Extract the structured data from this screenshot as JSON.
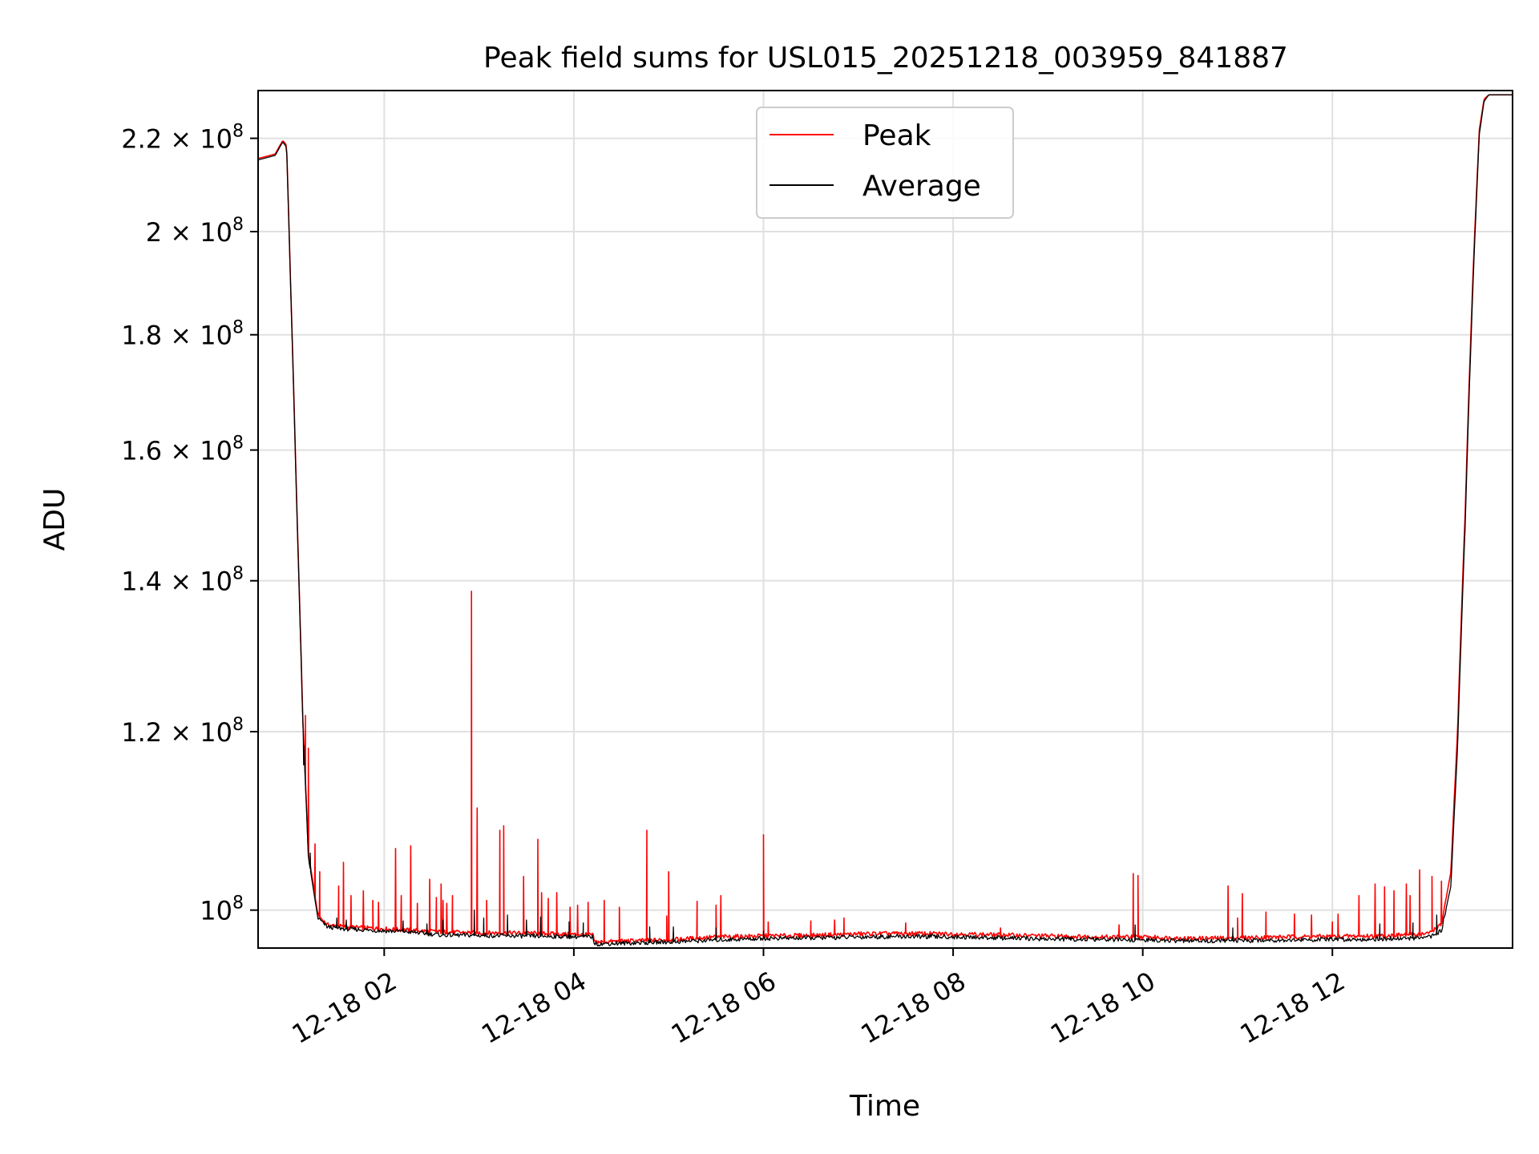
{
  "chart_data": {
    "type": "line",
    "title": "Peak field sums for USL015_20251218_003959_841887",
    "xlabel": "Time",
    "ylabel": "ADU",
    "y_scale": "log",
    "xlim_hours": [
      0.67,
      13.9
    ],
    "ylim": [
      96200000,
      231000000
    ],
    "grid": true,
    "legend_position": "upper-center",
    "x_ticks": [
      {
        "hour": 2,
        "label": "12-18 02"
      },
      {
        "hour": 4,
        "label": "12-18 04"
      },
      {
        "hour": 6,
        "label": "12-18 06"
      },
      {
        "hour": 8,
        "label": "12-18 08"
      },
      {
        "hour": 10,
        "label": "12-18 10"
      },
      {
        "hour": 12,
        "label": "12-18 12"
      }
    ],
    "y_ticks": [
      {
        "value": 100000000,
        "mantissa": "",
        "exponent": "8"
      },
      {
        "value": 120000000,
        "mantissa": "1.2",
        "exponent": "8"
      },
      {
        "value": 140000000,
        "mantissa": "1.4",
        "exponent": "8"
      },
      {
        "value": 160000000,
        "mantissa": "1.6",
        "exponent": "8"
      },
      {
        "value": 180000000,
        "mantissa": "1.8",
        "exponent": "8"
      },
      {
        "value": 200000000,
        "mantissa": "2",
        "exponent": "8"
      },
      {
        "value": 220000000,
        "mantissa": "2.2",
        "exponent": "8"
      }
    ],
    "times_label": "×",
    "base_label": "10",
    "series": [
      {
        "name": "Peak",
        "color": "#ff0000",
        "points": [
          [
            0.67,
            215500000
          ],
          [
            0.85,
            216500000
          ],
          [
            0.93,
            219500000
          ],
          [
            0.97,
            218500000
          ],
          [
            1.02,
            185000000
          ],
          [
            1.08,
            150000000
          ],
          [
            1.14,
            122000000
          ],
          [
            1.2,
            106000000
          ],
          [
            1.3,
            99500000
          ],
          [
            1.4,
            98500000
          ],
          [
            1.6,
            98300000
          ],
          [
            1.8,
            98200000
          ],
          [
            2.0,
            98100000
          ],
          [
            2.2,
            98000000
          ],
          [
            2.6,
            97800000
          ],
          [
            3.0,
            97700000
          ],
          [
            3.4,
            97700000
          ],
          [
            3.8,
            97600000
          ],
          [
            4.2,
            97500000
          ],
          [
            4.22,
            96800000
          ],
          [
            4.6,
            96900000
          ],
          [
            5.0,
            97000000
          ],
          [
            5.5,
            97300000
          ],
          [
            6.0,
            97400000
          ],
          [
            6.5,
            97450000
          ],
          [
            7.0,
            97600000
          ],
          [
            7.5,
            97650000
          ],
          [
            8.0,
            97600000
          ],
          [
            8.5,
            97500000
          ],
          [
            9.0,
            97400000
          ],
          [
            9.5,
            97300000
          ],
          [
            9.95,
            97300000
          ],
          [
            10.5,
            97150000
          ],
          [
            11.0,
            97200000
          ],
          [
            11.5,
            97300000
          ],
          [
            12.0,
            97350000
          ],
          [
            12.5,
            97400000
          ],
          [
            13.0,
            97600000
          ],
          [
            13.15,
            98500000
          ],
          [
            13.25,
            104000000
          ],
          [
            13.32,
            120000000
          ],
          [
            13.4,
            150000000
          ],
          [
            13.48,
            190000000
          ],
          [
            13.55,
            222000000
          ],
          [
            13.6,
            229000000
          ],
          [
            13.65,
            230000000
          ],
          [
            13.9,
            230000000
          ]
        ],
        "spikes": [
          [
            1.17,
            122000000
          ],
          [
            1.2,
            118000000
          ],
          [
            1.27,
            107000000
          ],
          [
            1.32,
            104000000
          ],
          [
            1.52,
            102500000
          ],
          [
            1.57,
            105000000
          ],
          [
            1.65,
            101500000
          ],
          [
            1.78,
            102000000
          ],
          [
            1.88,
            101000000
          ],
          [
            1.94,
            100800000
          ],
          [
            2.12,
            106500000
          ],
          [
            2.18,
            101500000
          ],
          [
            2.28,
            106800000
          ],
          [
            2.35,
            100700000
          ],
          [
            2.48,
            103200000
          ],
          [
            2.55,
            101300000
          ],
          [
            2.6,
            102700000
          ],
          [
            2.62,
            101000000
          ],
          [
            2.66,
            100700000
          ],
          [
            2.72,
            101500000
          ],
          [
            2.92,
            138500000
          ],
          [
            2.98,
            111000000
          ],
          [
            3.08,
            101000000
          ],
          [
            3.22,
            108500000
          ],
          [
            3.26,
            109000000
          ],
          [
            3.47,
            103500000
          ],
          [
            3.62,
            107500000
          ],
          [
            3.66,
            101800000
          ],
          [
            3.73,
            101200000
          ],
          [
            3.82,
            101800000
          ],
          [
            3.96,
            100300000
          ],
          [
            4.04,
            100500000
          ],
          [
            4.15,
            100800000
          ],
          [
            4.32,
            101000000
          ],
          [
            4.48,
            100300000
          ],
          [
            4.77,
            108500000
          ],
          [
            4.98,
            99400000
          ],
          [
            5.0,
            104000000
          ],
          [
            5.3,
            100900000
          ],
          [
            5.5,
            100500000
          ],
          [
            5.55,
            101500000
          ],
          [
            6.0,
            108000000
          ],
          [
            6.05,
            98800000
          ],
          [
            6.5,
            98900000
          ],
          [
            6.75,
            99000000
          ],
          [
            6.85,
            99200000
          ],
          [
            7.5,
            98700000
          ],
          [
            8.5,
            98200000
          ],
          [
            9.75,
            98500000
          ],
          [
            9.9,
            103800000
          ],
          [
            9.95,
            103600000
          ],
          [
            10.9,
            102500000
          ],
          [
            11.0,
            99200000
          ],
          [
            11.05,
            101700000
          ],
          [
            11.3,
            99800000
          ],
          [
            11.6,
            99600000
          ],
          [
            11.78,
            99500000
          ],
          [
            12.0,
            98800000
          ],
          [
            12.06,
            99600000
          ],
          [
            12.28,
            101500000
          ],
          [
            12.45,
            102700000
          ],
          [
            12.55,
            102400000
          ],
          [
            12.65,
            102000000
          ],
          [
            12.78,
            102700000
          ],
          [
            12.82,
            101500000
          ],
          [
            12.92,
            104200000
          ],
          [
            13.05,
            103500000
          ],
          [
            13.15,
            103000000
          ]
        ]
      },
      {
        "name": "Average",
        "color": "#000000",
        "points": [
          [
            0.67,
            215200000
          ],
          [
            0.85,
            216200000
          ],
          [
            0.93,
            219200000
          ],
          [
            0.97,
            218000000
          ],
          [
            1.02,
            184500000
          ],
          [
            1.08,
            149500000
          ],
          [
            1.14,
            121500000
          ],
          [
            1.2,
            105500000
          ],
          [
            1.3,
            99200000
          ],
          [
            1.4,
            98300000
          ],
          [
            1.6,
            98100000
          ],
          [
            1.8,
            98000000
          ],
          [
            2.0,
            97900000
          ],
          [
            2.2,
            97850000
          ],
          [
            2.6,
            97500000
          ],
          [
            3.0,
            97450000
          ],
          [
            3.4,
            97400000
          ],
          [
            3.8,
            97350000
          ],
          [
            4.2,
            97300000
          ],
          [
            4.22,
            96600000
          ],
          [
            4.6,
            96700000
          ],
          [
            5.0,
            96800000
          ],
          [
            5.5,
            97000000
          ],
          [
            6.0,
            97150000
          ],
          [
            6.5,
            97200000
          ],
          [
            7.0,
            97300000
          ],
          [
            7.5,
            97350000
          ],
          [
            8.0,
            97300000
          ],
          [
            8.5,
            97200000
          ],
          [
            9.0,
            97100000
          ],
          [
            9.5,
            97050000
          ],
          [
            9.95,
            97000000
          ],
          [
            10.5,
            96900000
          ],
          [
            11.0,
            96950000
          ],
          [
            11.5,
            97000000
          ],
          [
            12.0,
            97050000
          ],
          [
            12.5,
            97100000
          ],
          [
            13.0,
            97200000
          ],
          [
            13.15,
            97900000
          ],
          [
            13.25,
            102500000
          ],
          [
            13.32,
            118000000
          ],
          [
            13.4,
            148000000
          ],
          [
            13.48,
            188000000
          ],
          [
            13.55,
            221000000
          ],
          [
            13.6,
            228500000
          ],
          [
            13.65,
            230000000
          ],
          [
            13.9,
            230000000
          ]
        ],
        "spikes": [
          [
            1.15,
            116000000
          ],
          [
            1.22,
            106000000
          ],
          [
            1.5,
            99200000
          ],
          [
            1.6,
            99000000
          ],
          [
            2.2,
            98900000
          ],
          [
            2.45,
            98600000
          ],
          [
            2.62,
            99000000
          ],
          [
            2.95,
            100000000
          ],
          [
            3.05,
            99200000
          ],
          [
            3.3,
            99500000
          ],
          [
            3.5,
            99000000
          ],
          [
            3.65,
            99300000
          ],
          [
            3.95,
            98800000
          ],
          [
            4.1,
            98700000
          ],
          [
            4.8,
            98300000
          ],
          [
            5.05,
            98300000
          ],
          [
            5.5,
            98200000
          ],
          [
            6.0,
            97900000
          ],
          [
            9.92,
            98500000
          ],
          [
            10.95,
            98200000
          ],
          [
            12.5,
            98600000
          ],
          [
            12.85,
            98700000
          ],
          [
            13.1,
            99500000
          ]
        ]
      }
    ]
  }
}
